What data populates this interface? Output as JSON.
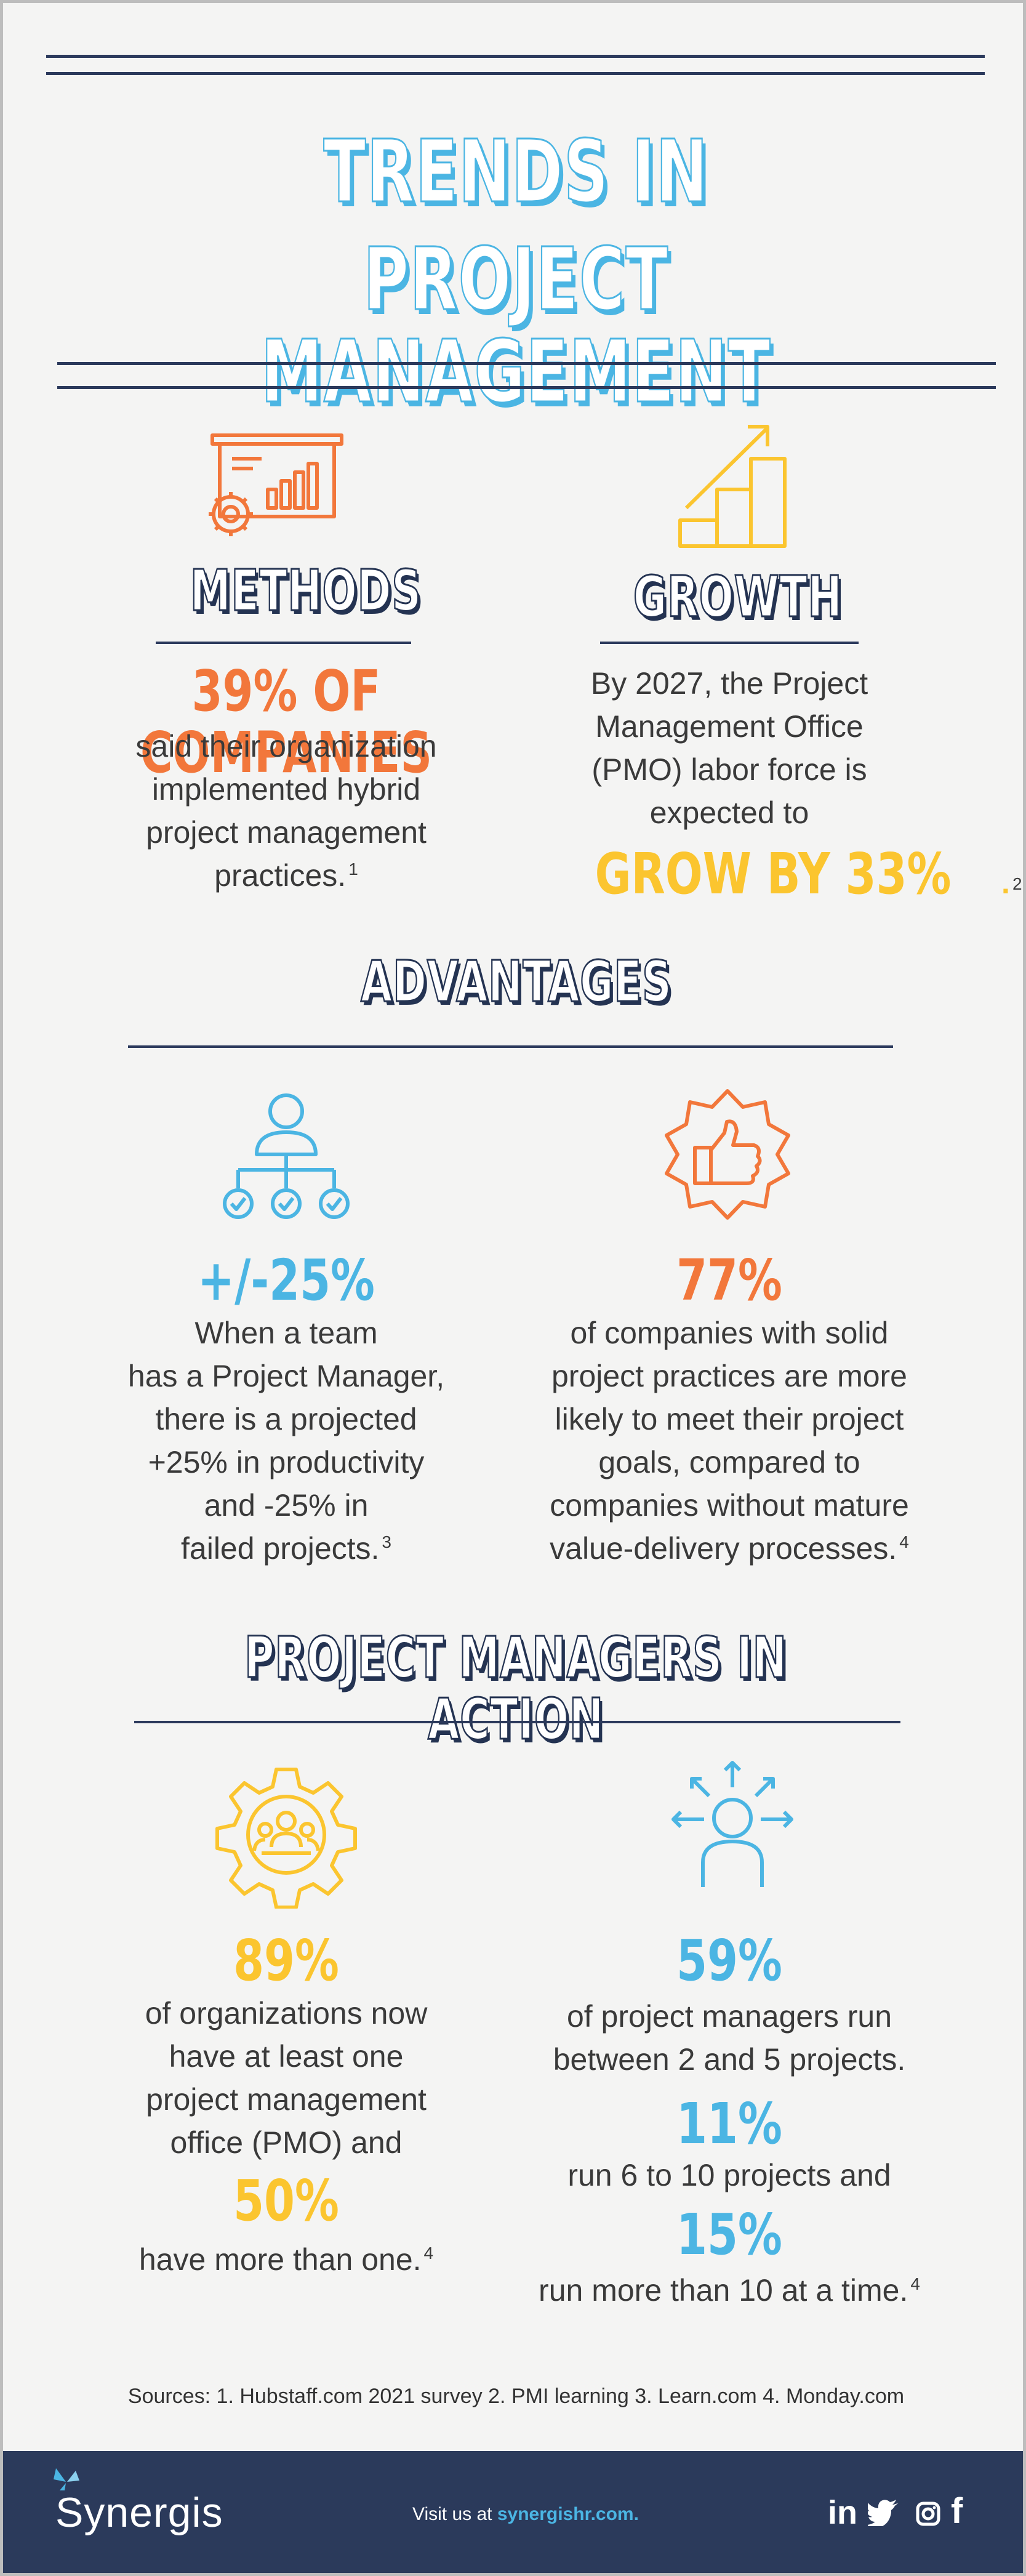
{
  "title": {
    "line1": "TRENDS IN",
    "line2": "PROJECT MANAGEMENT"
  },
  "methods": {
    "heading": "METHODS",
    "stat": "39% OF COMPANIES",
    "lines": [
      "said their organization",
      "implemented hybrid",
      "project management",
      "practices."
    ],
    "footnote": "1"
  },
  "growth": {
    "heading": "GROWTH",
    "lines": [
      "By  2027, the Project",
      "Management Office",
      "(PMO) labor force is",
      "expected to"
    ],
    "stat": "GROW BY 33%",
    "stat_suffix": ".",
    "footnote": "2"
  },
  "advantages": {
    "heading": "ADVANTAGES",
    "left": {
      "stat": "+/-25%",
      "lines": [
        "When a team",
        "has a Project Manager,",
        "there is a projected",
        "+25% in productivity",
        "and -25% in",
        "failed projects."
      ],
      "footnote": "3"
    },
    "right": {
      "stat": "77%",
      "lines": [
        "of companies with solid",
        "project practices are more",
        "likely to meet their project",
        "goals, compared to",
        "companies without mature",
        "value-delivery processes."
      ],
      "footnote": "4"
    }
  },
  "action": {
    "heading": "PROJECT MANAGERS IN ACTION",
    "left": {
      "stat1": "89%",
      "lines1": [
        "of organizations now",
        "have at least one",
        "project management",
        "office (PMO) and"
      ],
      "stat2": "50%",
      "line2": "have more than one.",
      "footnote": "4"
    },
    "right": {
      "stat1": "59%",
      "line1a": "of project managers run",
      "line1b": "between 2 and 5 projects.",
      "stat2": "11%",
      "line2": "run 6 to 10 projects and",
      "stat3": "15%",
      "line3": "run more than 10 at a time.",
      "footnote": "4"
    }
  },
  "sources": "Sources: 1. Hubstaff.com 2021 survey 2. PMI learning 3. Learn.com 4. Monday.com",
  "footer": {
    "brand": "Synergis",
    "visit_prefix": "Visit us at ",
    "visit_link": "synergishr.com.",
    "social": [
      "in",
      "twitter-icon",
      "instagram-icon",
      "f"
    ]
  },
  "colors": {
    "navy": "#2c3a5c",
    "blue": "#4bb5e3",
    "orange": "#f2773b",
    "yellow": "#fbc52f",
    "footer_bg": "#2b3a5b"
  }
}
